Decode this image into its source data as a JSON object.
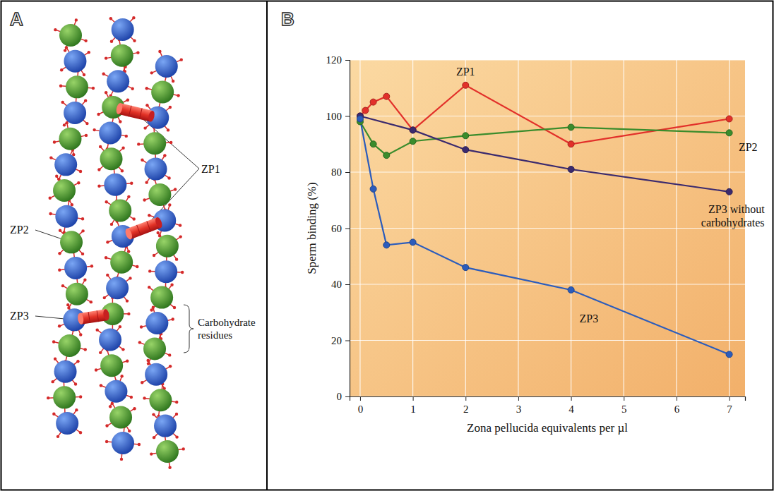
{
  "panel_letters": [
    "A",
    "B"
  ],
  "diagram": {
    "labels": {
      "zp1": "ZP1",
      "zp2": "ZP2",
      "zp3": "ZP3",
      "carbohydrate_residues": "Carbohydrate residues"
    }
  },
  "chart_data": {
    "type": "line",
    "x_label": "Zona pellucida equivalents per µl",
    "y_label": "Sperm binding (%)",
    "xlim": [
      -0.2,
      7.3
    ],
    "xticks": [
      0,
      1,
      2,
      3,
      4,
      5,
      6,
      7
    ],
    "ylim": [
      0,
      120
    ],
    "yticks": [
      0,
      20,
      40,
      60,
      80,
      100,
      120
    ],
    "grid": true,
    "series": [
      {
        "name": "ZP1",
        "color": "#e2302a",
        "marker": "circle",
        "x": [
          0,
          0.1,
          0.25,
          0.5,
          1,
          2,
          4,
          7
        ],
        "values": [
          100,
          102,
          105,
          107,
          95,
          111,
          90,
          99
        ]
      },
      {
        "name": "ZP2",
        "color": "#3a8c2c",
        "marker": "circle",
        "x": [
          0,
          0.25,
          0.5,
          1,
          2,
          4,
          7
        ],
        "values": [
          98,
          90,
          86,
          91,
          93,
          96,
          94
        ]
      },
      {
        "name": "ZP3 without carbohydrates",
        "color": "#3b2a6e",
        "marker": "circle",
        "x": [
          0,
          1,
          2,
          4,
          7
        ],
        "values": [
          100,
          95,
          88,
          81,
          73
        ]
      },
      {
        "name": "ZP3",
        "color": "#2b5cbc",
        "marker": "circle",
        "x": [
          0,
          0.25,
          0.5,
          1,
          2,
          4,
          7
        ],
        "values": [
          99,
          74,
          54,
          55,
          46,
          38,
          15
        ]
      }
    ]
  }
}
